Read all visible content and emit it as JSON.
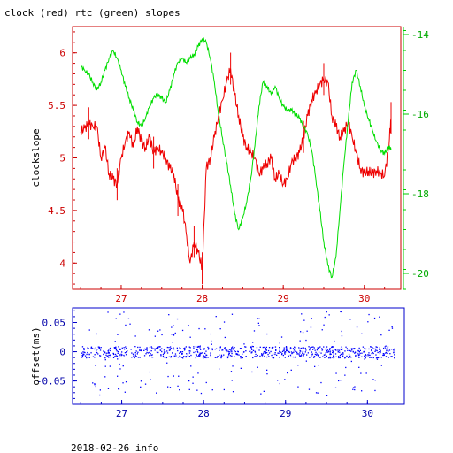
{
  "title": "clock (red) rtc (green) slopes",
  "footer": "2018-02-26 info",
  "colors": {
    "red": "#ee0000",
    "green": "#00dd00",
    "blue": "#0000ff",
    "axis_red": "#cc0000",
    "axis_blue": "#0000cc"
  },
  "chart_data": [
    {
      "type": "line",
      "title": "clock (red) rtc (green) slopes",
      "ylabel": "clockslope",
      "xlim": [
        26.4,
        30.45
      ],
      "ylim": [
        3.75,
        6.25
      ],
      "y2lim": [
        -20.4,
        -13.8
      ],
      "x_ticks": [
        "27",
        "28",
        "29",
        "30"
      ],
      "y_ticks": [
        "4",
        "4.5",
        "5",
        "5.5",
        "6"
      ],
      "y2_ticks": [
        "-14",
        "-16",
        "-18",
        "-20"
      ],
      "grid": false,
      "series": [
        {
          "name": "clock",
          "axis": "left",
          "color": "red",
          "x": [
            26.5,
            26.55,
            26.6,
            26.65,
            26.7,
            26.75,
            26.8,
            26.85,
            26.9,
            26.95,
            27.0,
            27.05,
            27.1,
            27.15,
            27.2,
            27.25,
            27.3,
            27.35,
            27.4,
            27.45,
            27.5,
            27.55,
            27.6,
            27.65,
            27.7,
            27.75,
            27.8,
            27.85,
            27.9,
            27.95,
            28.0,
            28.05,
            28.1,
            28.15,
            28.2,
            28.25,
            28.3,
            28.35,
            28.4,
            28.45,
            28.5,
            28.55,
            28.6,
            28.65,
            28.7,
            28.75,
            28.8,
            28.85,
            28.9,
            28.95,
            29.0,
            29.05,
            29.1,
            29.15,
            29.2,
            29.25,
            29.3,
            29.35,
            29.4,
            29.45,
            29.5,
            29.55,
            29.6,
            29.65,
            29.7,
            29.75,
            29.8,
            29.85,
            29.9,
            29.95,
            30.0,
            30.05,
            30.1,
            30.15,
            30.2,
            30.25,
            30.3,
            30.33
          ],
          "values": [
            5.25,
            5.28,
            5.33,
            5.3,
            5.3,
            5.0,
            5.1,
            4.85,
            4.8,
            4.75,
            5.0,
            5.15,
            5.25,
            5.1,
            5.3,
            5.15,
            5.1,
            5.2,
            5.05,
            5.1,
            5.05,
            5.0,
            4.9,
            4.85,
            4.6,
            4.55,
            4.3,
            4.0,
            4.2,
            4.1,
            3.95,
            4.9,
            5.0,
            5.2,
            5.4,
            5.55,
            5.72,
            5.85,
            5.6,
            5.4,
            5.2,
            5.1,
            5.05,
            5.0,
            4.85,
            4.9,
            4.95,
            5.0,
            4.8,
            4.85,
            4.75,
            4.8,
            4.95,
            5.0,
            5.05,
            5.2,
            5.4,
            5.55,
            5.62,
            5.7,
            5.75,
            5.72,
            5.4,
            5.3,
            5.2,
            5.25,
            5.35,
            5.2,
            5.05,
            4.9,
            4.85,
            4.88,
            4.85,
            4.88,
            4.85,
            4.83,
            5.1,
            5.38
          ]
        },
        {
          "name": "rtc",
          "axis": "right",
          "color": "green",
          "x": [
            26.5,
            26.55,
            26.6,
            26.65,
            26.7,
            26.75,
            26.8,
            26.85,
            26.9,
            26.95,
            27.0,
            27.05,
            27.1,
            27.15,
            27.2,
            27.25,
            27.3,
            27.35,
            27.4,
            27.45,
            27.5,
            27.55,
            27.6,
            27.65,
            27.7,
            27.75,
            27.8,
            27.85,
            27.9,
            27.95,
            28.0,
            28.05,
            28.1,
            28.15,
            28.2,
            28.25,
            28.3,
            28.35,
            28.4,
            28.45,
            28.5,
            28.55,
            28.6,
            28.65,
            28.7,
            28.75,
            28.8,
            28.85,
            28.9,
            28.95,
            29.0,
            29.05,
            29.1,
            29.15,
            29.2,
            29.25,
            29.3,
            29.35,
            29.4,
            29.45,
            29.5,
            29.55,
            29.6,
            29.65,
            29.7,
            29.75,
            29.8,
            29.85,
            29.9,
            29.95,
            30.0,
            30.05,
            30.1,
            30.15,
            30.2,
            30.25,
            30.3,
            30.33
          ],
          "values": [
            -14.8,
            -14.9,
            -15.0,
            -15.2,
            -15.4,
            -15.2,
            -14.9,
            -14.6,
            -14.4,
            -14.6,
            -14.9,
            -15.3,
            -15.6,
            -15.9,
            -16.2,
            -16.3,
            -16.1,
            -15.8,
            -15.6,
            -15.5,
            -15.6,
            -15.7,
            -15.4,
            -15.0,
            -14.7,
            -14.6,
            -14.7,
            -14.6,
            -14.5,
            -14.3,
            -14.1,
            -14.2,
            -14.6,
            -15.2,
            -16.0,
            -16.6,
            -17.2,
            -17.8,
            -18.5,
            -18.9,
            -18.6,
            -18.2,
            -17.6,
            -16.8,
            -15.8,
            -15.2,
            -15.3,
            -15.5,
            -15.3,
            -15.6,
            -15.8,
            -15.9,
            -15.9,
            -16.0,
            -16.1,
            -16.3,
            -16.5,
            -16.9,
            -17.6,
            -18.4,
            -19.2,
            -19.8,
            -20.1,
            -19.6,
            -18.4,
            -17.2,
            -16.2,
            -15.2,
            -14.9,
            -15.3,
            -15.8,
            -16.1,
            -16.4,
            -16.7,
            -16.9,
            -17.0,
            -16.8,
            -16.9
          ]
        }
      ]
    },
    {
      "type": "scatter",
      "ylabel": "offset(ms)",
      "xlim": [
        26.4,
        30.45
      ],
      "ylim": [
        -0.09,
        0.075
      ],
      "x_ticks": [
        "27",
        "28",
        "29",
        "30"
      ],
      "y_ticks": [
        "0.05",
        "0",
        "-0.05"
      ],
      "grid": false,
      "series": [
        {
          "name": "offset",
          "color": "blue",
          "x_range": [
            26.5,
            30.33
          ],
          "y_range": [
            -0.075,
            0.07
          ],
          "typical_band": [
            -0.01,
            0.01
          ]
        }
      ]
    }
  ]
}
